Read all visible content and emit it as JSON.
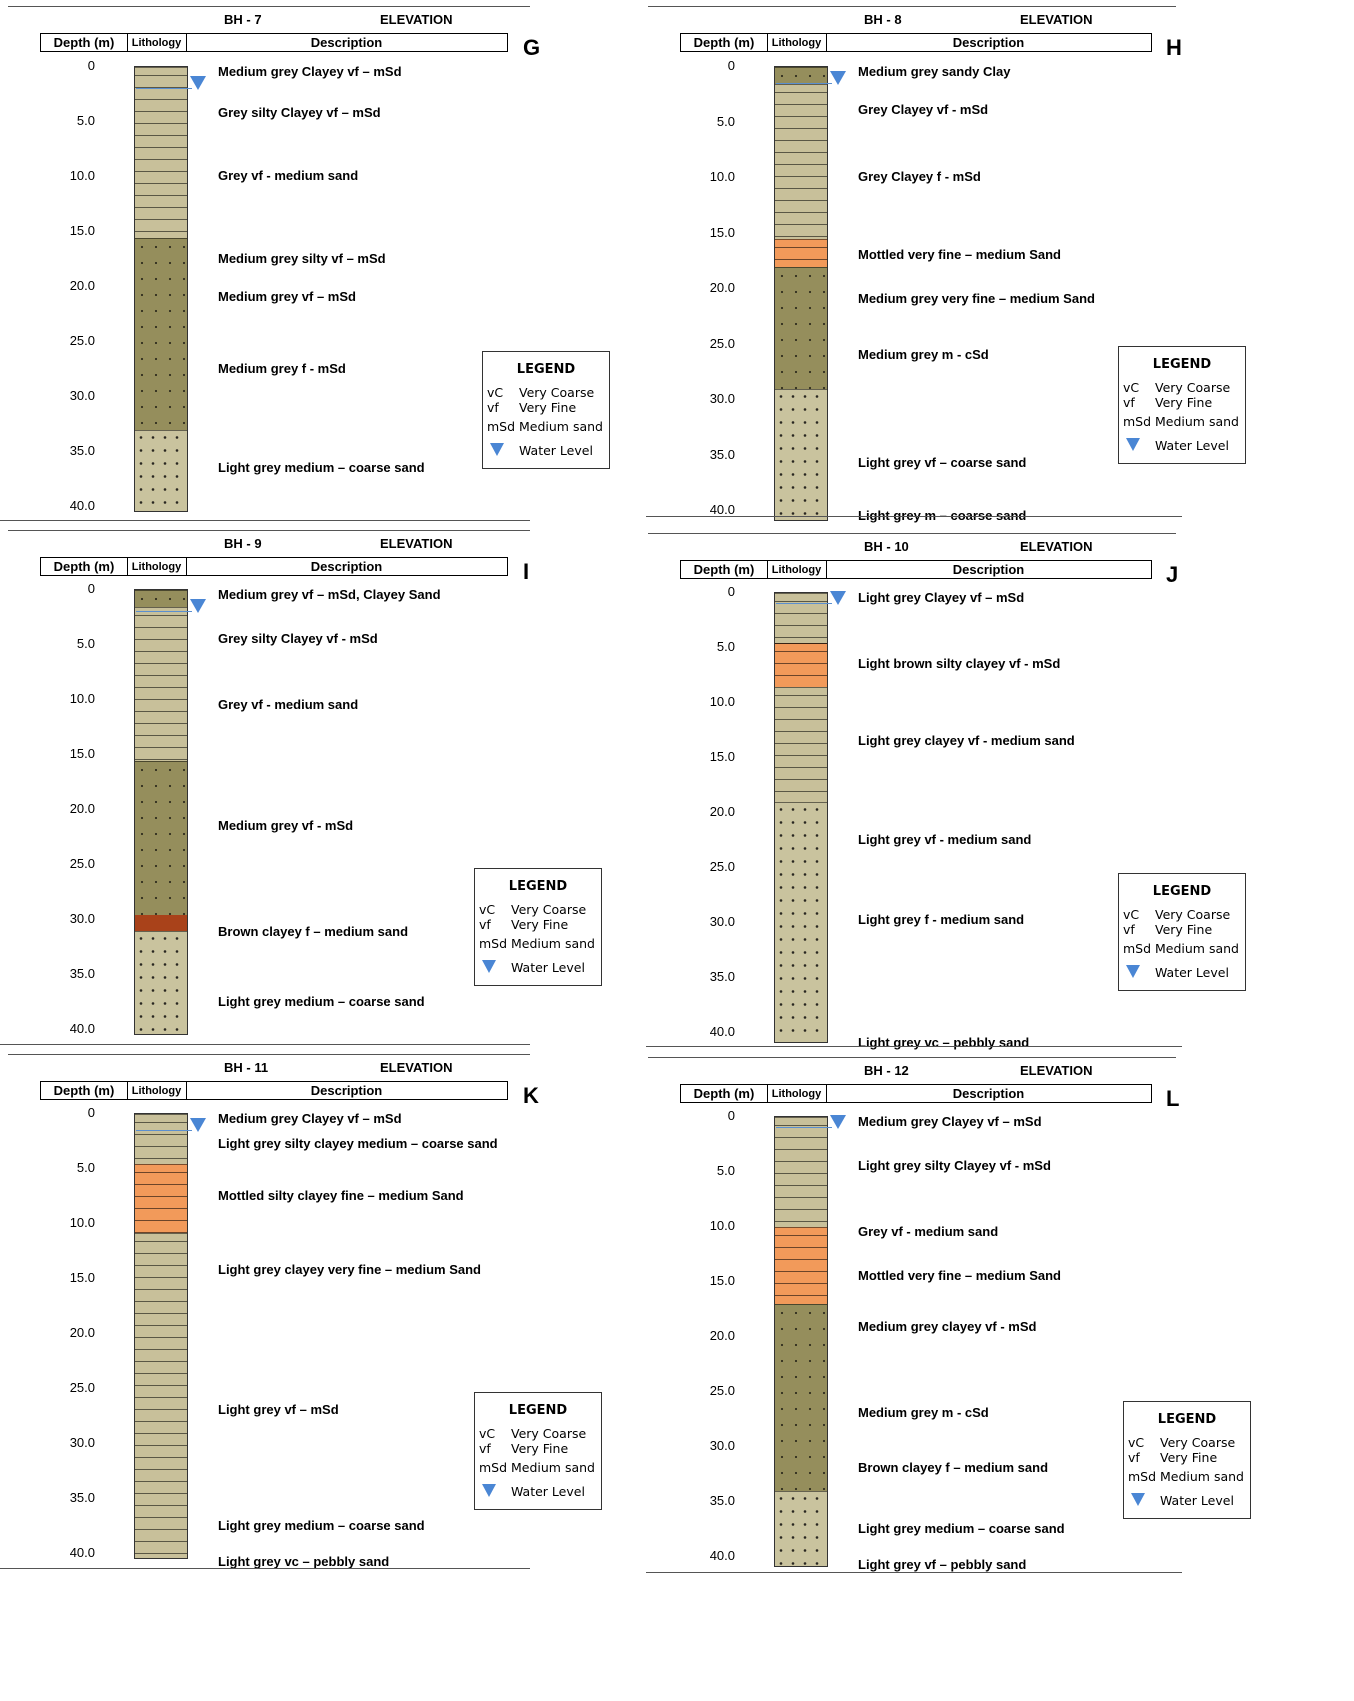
{
  "header_labels": {
    "depth": "Depth (m)",
    "lithology": "Lithology",
    "description": "Description",
    "elevation": "ELEVATION"
  },
  "ticks": [
    "0",
    "5.0",
    "10.0",
    "15.0",
    "20.0",
    "25.0",
    "30.0",
    "35.0",
    "40.0"
  ],
  "colors": {
    "clay_light": "#c8c09a",
    "grey_dark": "#958e5c",
    "orange": "#f29a5a",
    "brown": "#a9421a",
    "sand_light": "#c9c39e",
    "water": "#4a86d4"
  },
  "legend": {
    "title": "LEGEND",
    "items": [
      {
        "abbr": "vC",
        "text": "Very Coarse"
      },
      {
        "abbr": "vf",
        "text": "Very Fine"
      },
      {
        "abbr": "mSd",
        "text": "Medium sand"
      }
    ],
    "water": "Water Level",
    "water_icon": "water-level-triangle-icon"
  },
  "boreholes": [
    {
      "title": "BH - 7",
      "letter": "G",
      "water_level_m": 2.0,
      "layers": [
        {
          "top": 0,
          "bottom": 15.5,
          "type": "clay_light"
        },
        {
          "top": 15.5,
          "bottom": 33,
          "type": "grey_dark"
        },
        {
          "top": 33,
          "bottom": 40.5,
          "type": "sand_light"
        }
      ],
      "descriptions": [
        {
          "depth": 0.5,
          "text": "Medium grey Clayey vf – mSd"
        },
        {
          "depth": 4.3,
          "text": "Grey silty Clayey vf – mSd"
        },
        {
          "depth": 10.0,
          "text": "Grey vf - medium sand"
        },
        {
          "depth": 17.5,
          "text": "Medium grey silty vf – mSd"
        },
        {
          "depth": 21.0,
          "text": "Medium grey vf – mSd"
        },
        {
          "depth": 27.5,
          "text": "Medium grey f - mSd"
        },
        {
          "depth": 36.5,
          "text": "Light grey medium – coarse sand"
        }
      ]
    },
    {
      "title": "BH - 8",
      "letter": "H",
      "water_level_m": 1.5,
      "layers": [
        {
          "top": 0,
          "bottom": 1.5,
          "type": "grey_dark"
        },
        {
          "top": 1.5,
          "bottom": 15.5,
          "type": "clay_light"
        },
        {
          "top": 15.5,
          "bottom": 18,
          "type": "orange"
        },
        {
          "top": 18,
          "bottom": 29,
          "type": "grey_dark"
        },
        {
          "top": 29,
          "bottom": 41,
          "type": "sand_light"
        }
      ],
      "descriptions": [
        {
          "depth": 0.5,
          "text": "Medium grey sandy Clay"
        },
        {
          "depth": 4.0,
          "text": "Grey Clayey vf - mSd"
        },
        {
          "depth": 10.0,
          "text": "Grey Clayey f - mSd"
        },
        {
          "depth": 17.0,
          "text": "Mottled very fine – medium Sand"
        },
        {
          "depth": 21.0,
          "text": "Medium grey very fine – medium Sand"
        },
        {
          "depth": 26.0,
          "text": "Medium grey m - cSd"
        },
        {
          "depth": 35.8,
          "text": "Light grey vf – coarse sand"
        },
        {
          "depth": 40.5,
          "text": "Light grey m – coarse sand"
        }
      ]
    },
    {
      "title": "BH - 9",
      "letter": "I",
      "water_level_m": 2.0,
      "layers": [
        {
          "top": 0,
          "bottom": 1.5,
          "type": "grey_dark"
        },
        {
          "top": 1.5,
          "bottom": 15.5,
          "type": "clay_light"
        },
        {
          "top": 15.5,
          "bottom": 29.5,
          "type": "grey_dark"
        },
        {
          "top": 29.5,
          "bottom": 31,
          "type": "brown"
        },
        {
          "top": 31,
          "bottom": 40.5,
          "type": "sand_light"
        }
      ],
      "descriptions": [
        {
          "depth": 0.5,
          "text": "Medium grey vf – mSd, Clayey Sand"
        },
        {
          "depth": 4.5,
          "text": "Grey silty Clayey vf - mSd"
        },
        {
          "depth": 10.5,
          "text": "Grey vf - medium sand"
        },
        {
          "depth": 21.5,
          "text": "Medium grey vf - mSd"
        },
        {
          "depth": 31.2,
          "text": "Brown clayey f – medium sand"
        },
        {
          "depth": 37.5,
          "text": "Light grey medium – coarse sand"
        }
      ]
    },
    {
      "title": "BH - 10",
      "letter": "J",
      "water_level_m": 1.0,
      "layers": [
        {
          "top": 0,
          "bottom": 4.5,
          "type": "clay_light"
        },
        {
          "top": 4.5,
          "bottom": 8.5,
          "type": "orange"
        },
        {
          "top": 8.5,
          "bottom": 19,
          "type": "clay_light"
        },
        {
          "top": 19,
          "bottom": 41,
          "type": "sand_light"
        }
      ],
      "descriptions": [
        {
          "depth": 0.5,
          "text": "Light grey Clayey vf – mSd"
        },
        {
          "depth": 6.5,
          "text": "Light brown silty clayey vf - mSd"
        },
        {
          "depth": 13.5,
          "text": "Light grey clayey vf - medium sand"
        },
        {
          "depth": 22.5,
          "text": "Light grey vf - medium sand"
        },
        {
          "depth": 29.8,
          "text": "Light grey f - medium sand"
        },
        {
          "depth": 41.0,
          "text": "Light grey vc – pebbly  sand"
        }
      ]
    },
    {
      "title": "BH - 11",
      "letter": "K",
      "water_level_m": 1.5,
      "layers": [
        {
          "top": 0,
          "bottom": 4.5,
          "type": "clay_light"
        },
        {
          "top": 4.5,
          "bottom": 10.8,
          "type": "orange"
        },
        {
          "top": 10.8,
          "bottom": 40.5,
          "type": "clay_light"
        }
      ],
      "descriptions": [
        {
          "depth": 0.5,
          "text": "Medium grey Clayey vf – mSd"
        },
        {
          "depth": 2.8,
          "text": "Light grey silty clayey medium – coarse sand"
        },
        {
          "depth": 7.5,
          "text": "Mottled silty clayey fine – medium Sand"
        },
        {
          "depth": 14.3,
          "text": "Light grey clayey very fine – medium Sand"
        },
        {
          "depth": 27.0,
          "text": "Light grey vf – mSd"
        },
        {
          "depth": 37.5,
          "text": "Light grey medium – coarse sand"
        },
        {
          "depth": 40.8,
          "text": "Light grey vc – pebbly sand"
        }
      ]
    },
    {
      "title": "BH - 12",
      "letter": "L",
      "water_level_m": 1.0,
      "layers": [
        {
          "top": 0,
          "bottom": 10,
          "type": "clay_light"
        },
        {
          "top": 10,
          "bottom": 17,
          "type": "orange"
        },
        {
          "top": 17,
          "bottom": 34,
          "type": "grey_dark"
        },
        {
          "top": 34,
          "bottom": 41,
          "type": "sand_light"
        }
      ],
      "descriptions": [
        {
          "depth": 0.5,
          "text": "Medium grey Clayey vf – mSd"
        },
        {
          "depth": 4.5,
          "text": "Light grey silty Clayey vf - mSd"
        },
        {
          "depth": 10.5,
          "text": "Grey vf - medium sand"
        },
        {
          "depth": 14.5,
          "text": "Mottled very fine – medium Sand"
        },
        {
          "depth": 19.2,
          "text": "Medium grey clayey vf - mSd"
        },
        {
          "depth": 27.0,
          "text": "Medium grey m - cSd"
        },
        {
          "depth": 32.0,
          "text": "Brown clayey f – medium sand"
        },
        {
          "depth": 37.5,
          "text": "Light grey medium – coarse sand"
        },
        {
          "depth": 40.8,
          "text": "Light grey vf – pebbly sand"
        }
      ]
    }
  ]
}
